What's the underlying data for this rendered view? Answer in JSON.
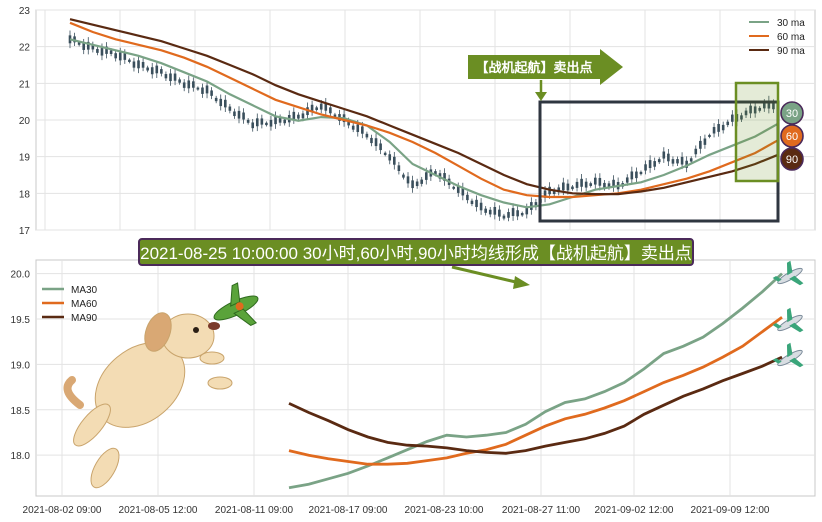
{
  "chart_data": [
    {
      "type": "line",
      "ylim": [
        17,
        23
      ],
      "y_ticks": [
        "17",
        "18",
        "19",
        "20",
        "21",
        "22",
        "23"
      ],
      "grid": true,
      "legend": {
        "position": "top-right",
        "entries": [
          "30 ma",
          "60 ma",
          "90 ma"
        ]
      },
      "colors": {
        "ma30": "#7aa386",
        "ma60": "#e06a1e",
        "ma90": "#5a2a12",
        "candle": "#3a4f5c"
      },
      "series": [
        {
          "name": "30 ma",
          "values": [
            22.2,
            22.05,
            21.9,
            21.75,
            21.55,
            21.3,
            21.05,
            20.7,
            20.4,
            20.1,
            19.98,
            20.08,
            20.05,
            19.85,
            19.4,
            18.8,
            18.5,
            18.2,
            17.95,
            17.75,
            17.62,
            17.7,
            17.9,
            18.1,
            18.2,
            18.3,
            18.5,
            18.75,
            19.05,
            19.3,
            19.55,
            19.9
          ]
        },
        {
          "name": "60 ma",
          "values": [
            22.65,
            22.4,
            22.2,
            22.05,
            21.9,
            21.7,
            21.45,
            21.15,
            20.85,
            20.55,
            20.35,
            20.15,
            20.0,
            19.85,
            19.65,
            19.4,
            19.1,
            18.75,
            18.4,
            18.1,
            17.95,
            17.9,
            17.9,
            17.95,
            18.0,
            18.1,
            18.25,
            18.4,
            18.6,
            18.85,
            19.1,
            19.45
          ]
        },
        {
          "name": "90 ma",
          "values": [
            22.75,
            22.6,
            22.45,
            22.3,
            22.15,
            21.95,
            21.75,
            21.5,
            21.25,
            20.95,
            20.7,
            20.5,
            20.3,
            20.1,
            19.85,
            19.6,
            19.35,
            19.1,
            18.8,
            18.5,
            18.25,
            18.1,
            18.0,
            17.98,
            17.98,
            18.05,
            18.15,
            18.3,
            18.45,
            18.6,
            18.8,
            19.05
          ]
        },
        {
          "name": "price",
          "values": [
            22.2,
            21.95,
            21.8,
            21.5,
            21.3,
            21.0,
            20.8,
            20.3,
            19.9,
            19.95,
            20.1,
            20.4,
            20.0,
            19.6,
            19.0,
            18.2,
            18.6,
            18.1,
            17.6,
            17.4,
            17.5,
            18.05,
            18.2,
            18.3,
            18.2,
            18.6,
            19.0,
            18.8,
            19.6,
            20.0,
            20.3,
            20.45
          ]
        }
      ],
      "annotations": {
        "arrow_label": "【战机起航】卖出点",
        "markers": [
          "30",
          "60",
          "90"
        ]
      }
    },
    {
      "type": "line",
      "ylim": [
        17.55,
        20.15
      ],
      "y_ticks": [
        "18.0",
        "18.5",
        "19.0",
        "19.5",
        "20.0"
      ],
      "grid": true,
      "x_ticks": [
        "2021-08-02 09:00",
        "2021-08-05 12:00",
        "2021-08-11 09:00",
        "2021-08-17 09:00",
        "2021-08-23 10:00",
        "2021-08-27 11:00",
        "2021-09-02 12:00",
        "2021-09-09 12:00"
      ],
      "legend": {
        "position": "top-left",
        "entries": [
          "MA30",
          "MA60",
          "MA90"
        ]
      },
      "series": [
        {
          "name": "MA30",
          "values": [
            17.64,
            17.68,
            17.74,
            17.8,
            17.88,
            17.97,
            18.06,
            18.15,
            18.22,
            18.2,
            18.22,
            18.25,
            18.34,
            18.48,
            18.58,
            18.62,
            18.7,
            18.8,
            18.95,
            19.12,
            19.2,
            19.3,
            19.45,
            19.62,
            19.8,
            20.0
          ]
        },
        {
          "name": "MA60",
          "values": [
            18.05,
            18.0,
            17.96,
            17.93,
            17.9,
            17.9,
            17.91,
            17.94,
            17.97,
            18.02,
            18.06,
            18.12,
            18.22,
            18.32,
            18.4,
            18.45,
            18.52,
            18.6,
            18.7,
            18.8,
            18.88,
            18.97,
            19.08,
            19.2,
            19.36,
            19.52
          ]
        },
        {
          "name": "MA90",
          "values": [
            18.57,
            18.47,
            18.38,
            18.28,
            18.2,
            18.14,
            18.11,
            18.1,
            18.08,
            18.05,
            18.03,
            18.02,
            18.05,
            18.1,
            18.14,
            18.18,
            18.24,
            18.32,
            18.45,
            18.55,
            18.65,
            18.73,
            18.82,
            18.9,
            18.98,
            19.08
          ]
        }
      ]
    }
  ],
  "headline": "2021-08-25 10:00:00 30小时,60小时,90小时均线形成【战机起航】卖出点"
}
